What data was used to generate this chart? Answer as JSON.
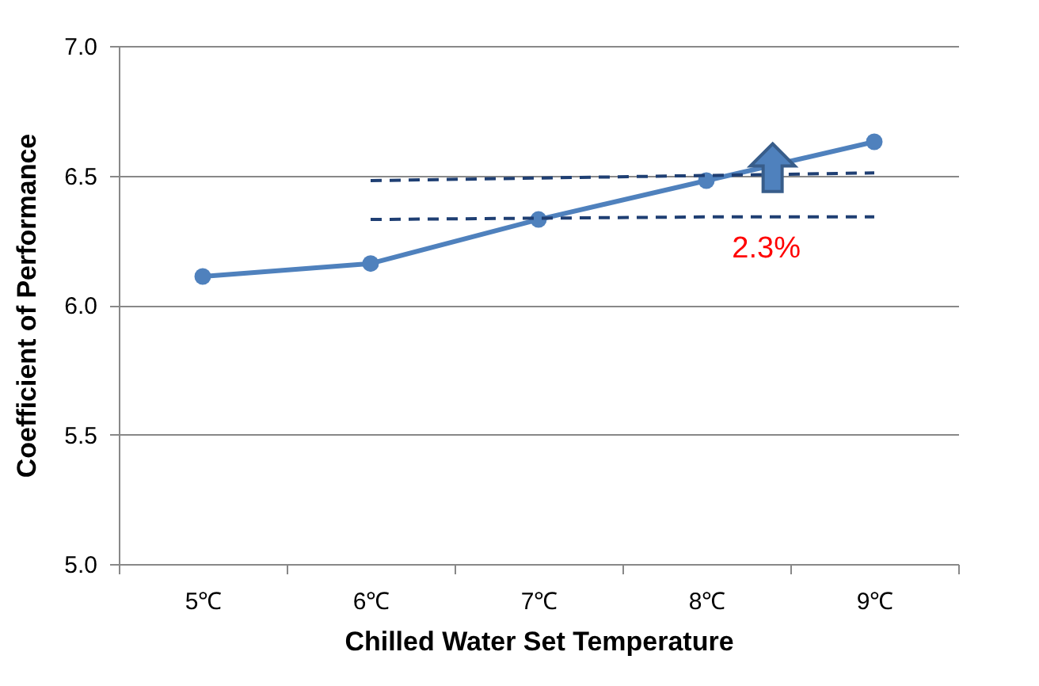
{
  "chart_data": {
    "type": "line",
    "xlabel": "Chilled Water Set Temperature",
    "ylabel": "Coefficient of Performance",
    "categories": [
      "5℃",
      "6℃",
      "7℃",
      "8℃",
      "9℃"
    ],
    "series": [
      {
        "color": "#4f81bd",
        "values": [
          6.11,
          6.16,
          6.33,
          6.48,
          6.63
        ]
      },
      {
        "color": "#1f3f73",
        "line_style": "dashed",
        "marker": "none",
        "values": [
          null,
          6.48,
          6.49,
          6.5,
          6.51
        ]
      },
      {
        "color": "#1f3f73",
        "line_style": "dashed",
        "marker": "none",
        "values": [
          null,
          6.33,
          6.335,
          6.34,
          6.34
        ]
      }
    ],
    "ylim": [
      5,
      7
    ],
    "yticks": [
      {
        "value": 5,
        "label": "5.0"
      },
      {
        "value": 5.5,
        "label": "5.5"
      },
      {
        "value": 6,
        "label": "6.0"
      },
      {
        "value": 6.5,
        "label": "6.5"
      },
      {
        "value": 7,
        "label": "7.0"
      }
    ],
    "grid": "y",
    "marker": "circle",
    "annotations": [
      "2.3%"
    ]
  }
}
